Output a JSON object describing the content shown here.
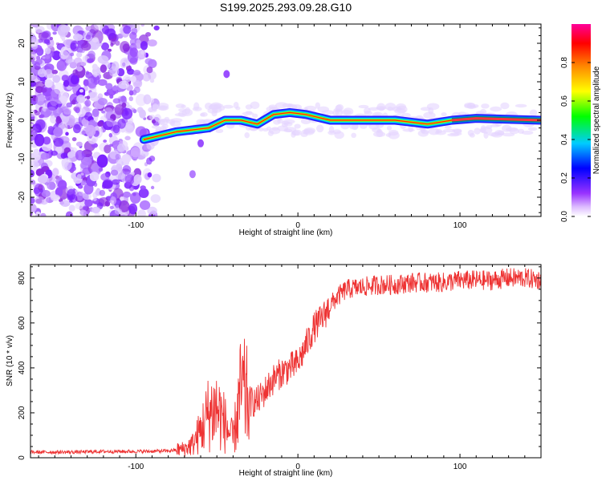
{
  "figure_title": "S199.2025.293.09.28.G10",
  "chart_data": [
    {
      "type": "heatmap",
      "title": "S199.2025.293.09.28.G10",
      "xlabel": "Height of straight line (km)",
      "ylabel": "Frequency (Hz)",
      "xlim": [
        -165,
        150
      ],
      "ylim": [
        -25,
        25
      ],
      "x_ticks": [
        -100,
        0,
        100
      ],
      "y_ticks": [
        -20,
        -10,
        0,
        10,
        20
      ],
      "colorbar": {
        "label": "Normalized spectral amplitude",
        "range": [
          0,
          1
        ],
        "ticks": [
          "0.0",
          "0.2",
          "0.4",
          "0.6",
          "0.8"
        ],
        "colors": [
          "#ffffff",
          "#cc99ff",
          "#8800ff",
          "#0000ff",
          "#00ffff",
          "#00ff00",
          "#ffff00",
          "#ff8800",
          "#ff0000",
          "#ff0099"
        ]
      },
      "trace": {
        "description_points_x_km": [
          -95,
          -85,
          -75,
          -65,
          -55,
          -45,
          -35,
          -25,
          -15,
          -5,
          5,
          20,
          40,
          60,
          80,
          95,
          110,
          150
        ],
        "frequency_hz": [
          -5,
          -4,
          -3,
          -2.5,
          -2,
          0,
          0,
          -1,
          1.5,
          2,
          1.5,
          0,
          0,
          0,
          -1,
          0,
          0.5,
          0
        ]
      }
    },
    {
      "type": "line",
      "xlabel": "Height of straight line (km)",
      "ylabel": "SNR (10 * v/v)",
      "xlim": [
        -165,
        150
      ],
      "ylim": [
        0,
        860
      ],
      "x_ticks": [
        -100,
        0,
        100
      ],
      "y_ticks": [
        0,
        200,
        400,
        600,
        800
      ],
      "series": [
        {
          "name": "SNR",
          "color": "#ee3333",
          "x": [
            -165,
            -140,
            -120,
            -100,
            -80,
            -70,
            -65,
            -60,
            -55,
            -50,
            -45,
            -40,
            -35,
            -30,
            -25,
            -20,
            -15,
            -10,
            -5,
            0,
            5,
            10,
            15,
            20,
            25,
            30,
            40,
            50,
            60,
            70,
            80,
            90,
            100,
            110,
            120,
            130,
            140,
            150
          ],
          "values": [
            25,
            25,
            28,
            28,
            30,
            40,
            60,
            120,
            200,
            220,
            150,
            80,
            300,
            250,
            250,
            300,
            350,
            380,
            400,
            420,
            500,
            580,
            620,
            680,
            720,
            750,
            760,
            770,
            770,
            780,
            780,
            780,
            790,
            790,
            790,
            800,
            800,
            790
          ]
        }
      ]
    }
  ]
}
